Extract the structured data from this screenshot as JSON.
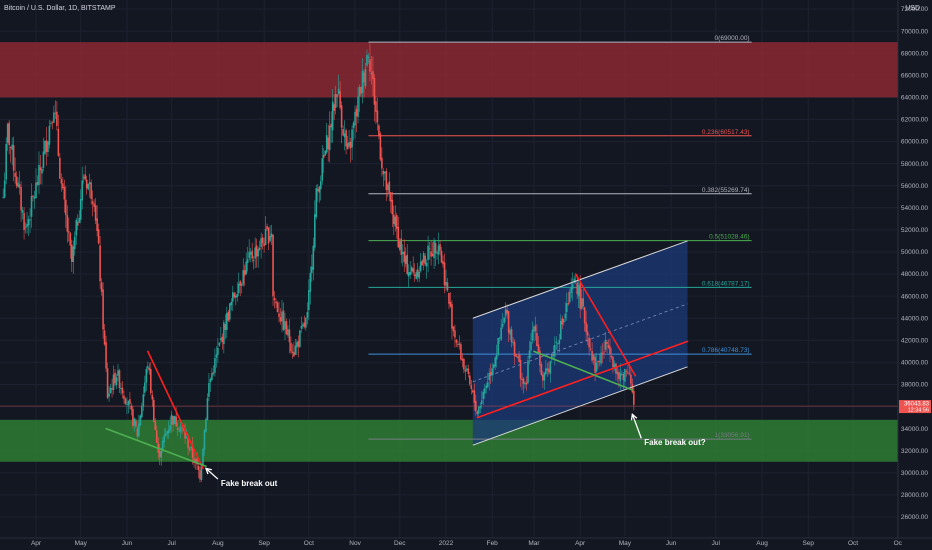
{
  "header": {
    "symbol_title": "Bitcoin / U.S. Dollar, 1D, BITSTAMP",
    "currency": "USD"
  },
  "colors": {
    "background": "#131722",
    "grid": "#1e2230",
    "candle_up": "#26a69a",
    "candle_down": "#ef5350",
    "resistance_zone": "#8c2833",
    "support_zone": "#2f7d32",
    "channel_fill": "#1c3a78",
    "channel_line": "#d9d9d9",
    "trend_red": "#ff1f1f",
    "trend_green": "#4caf50",
    "price_label": "#ef5350"
  },
  "chart_data": {
    "type": "candlestick",
    "title": "",
    "x_axis": {
      "ticks": [
        {
          "label": "Apr",
          "date": "2021-04-01"
        },
        {
          "label": "May",
          "date": "2021-05-01"
        },
        {
          "label": "Jun",
          "date": "2021-06-01"
        },
        {
          "label": "Jul",
          "date": "2021-07-01"
        },
        {
          "label": "Aug",
          "date": "2021-08-01"
        },
        {
          "label": "Sep",
          "date": "2021-09-01"
        },
        {
          "label": "Oct",
          "date": "2021-10-01"
        },
        {
          "label": "Nov",
          "date": "2021-11-01"
        },
        {
          "label": "Dec",
          "date": "2021-12-01"
        },
        {
          "label": "2022",
          "date": "2022-01-01"
        },
        {
          "label": "Feb",
          "date": "2022-02-01"
        },
        {
          "label": "Mar",
          "date": "2022-03-01"
        },
        {
          "label": "Apr",
          "date": "2022-04-01"
        },
        {
          "label": "May",
          "date": "2022-05-01"
        },
        {
          "label": "Jun",
          "date": "2022-06-01"
        },
        {
          "label": "Jul",
          "date": "2022-07-01"
        },
        {
          "label": "Aug",
          "date": "2022-08-01"
        },
        {
          "label": "Sep",
          "date": "2022-09-01"
        },
        {
          "label": "Oct",
          "date": "2022-10-01"
        },
        {
          "label": "Oc",
          "date": "2022-10-31"
        }
      ]
    },
    "y_axis": {
      "ylim": [
        24000,
        73000
      ],
      "ticks": [
        "72000.00",
        "70000.00",
        "68000.00",
        "66000.00",
        "64000.00",
        "62000.00",
        "60000.00",
        "58000.00",
        "56000.00",
        "54000.00",
        "52000.00",
        "50000.00",
        "48000.00",
        "46000.00",
        "44000.00",
        "42000.00",
        "40000.00",
        "38000.00",
        "36000.00",
        "34000.00",
        "32000.00",
        "30000.00",
        "28000.00",
        "26000.00"
      ]
    },
    "price_path": [
      [
        "2021-03-10",
        55000
      ],
      [
        "2021-03-13",
        61000
      ],
      [
        "2021-03-25",
        52000
      ],
      [
        "2021-04-05",
        58000
      ],
      [
        "2021-04-13",
        63500
      ],
      [
        "2021-04-18",
        56000
      ],
      [
        "2021-04-25",
        49000
      ],
      [
        "2021-05-03",
        57000
      ],
      [
        "2021-05-10",
        55000
      ],
      [
        "2021-05-13",
        50000
      ],
      [
        "2021-05-19",
        37000
      ],
      [
        "2021-05-25",
        39000
      ],
      [
        "2021-06-01",
        36500
      ],
      [
        "2021-06-08",
        33500
      ],
      [
        "2021-06-15",
        40000
      ],
      [
        "2021-06-22",
        31500
      ],
      [
        "2021-07-01",
        35000
      ],
      [
        "2021-07-08",
        34000
      ],
      [
        "2021-07-20",
        29800
      ],
      [
        "2021-07-26",
        38000
      ],
      [
        "2021-08-07",
        44000
      ],
      [
        "2021-08-14",
        47000
      ],
      [
        "2021-08-23",
        49500
      ],
      [
        "2021-09-06",
        52000
      ],
      [
        "2021-09-07",
        46000
      ],
      [
        "2021-09-21",
        41000
      ],
      [
        "2021-09-30",
        44000
      ],
      [
        "2021-10-06",
        55000
      ],
      [
        "2021-10-15",
        61000
      ],
      [
        "2021-10-20",
        65000
      ],
      [
        "2021-10-27",
        58500
      ],
      [
        "2021-11-10",
        68500
      ],
      [
        "2021-11-20",
        57000
      ],
      [
        "2021-12-04",
        49000
      ],
      [
        "2021-12-10",
        48000
      ],
      [
        "2021-12-27",
        51000
      ],
      [
        "2022-01-06",
        43000
      ],
      [
        "2022-01-22",
        35500
      ],
      [
        "2022-02-05",
        41500
      ],
      [
        "2022-02-10",
        44500
      ],
      [
        "2022-02-23",
        37500
      ],
      [
        "2022-03-01",
        44000
      ],
      [
        "2022-03-07",
        38000
      ],
      [
        "2022-03-29",
        47500
      ],
      [
        "2022-04-11",
        39500
      ],
      [
        "2022-04-20",
        42000
      ],
      [
        "2022-04-26",
        38500
      ],
      [
        "2022-05-04",
        39500
      ],
      [
        "2022-05-07",
        36043
      ]
    ],
    "price_ranges": [
      {
        "name": "resistance-zone",
        "from": 64000,
        "to": 69000
      },
      {
        "name": "support-zone",
        "from": 31000,
        "to": 34800
      }
    ],
    "fib_levels": [
      {
        "label": "0(69000.00)",
        "price": 69000,
        "color": "#b2b5be"
      },
      {
        "label": "0.236(60517.43)",
        "price": 60517.43,
        "color": "#ef5350"
      },
      {
        "label": "0.382(55269.74)",
        "price": 55269.74,
        "color": "#b2b5be"
      },
      {
        "label": "0.5(51028.46)",
        "price": 51028.46,
        "color": "#4caf50"
      },
      {
        "label": "0.618(46787.17)",
        "price": 46787.17,
        "color": "#26a69a"
      },
      {
        "label": "0.786(40748.73)",
        "price": 40748.73,
        "color": "#3f8fd8"
      },
      {
        "label": "1(33056.91)",
        "price": 33056.91,
        "color": "#787b86"
      }
    ],
    "fib_start_date": "2021-11-10",
    "fib_end_date": "2022-07-25",
    "channel": {
      "upper": [
        [
          "2022-01-19",
          44000
        ],
        [
          "2022-06-12",
          51000
        ]
      ],
      "lower": [
        [
          "2022-01-19",
          32500
        ],
        [
          "2022-06-12",
          39600
        ]
      ],
      "x_end": "2022-06-12"
    },
    "trend_lines": [
      {
        "name": "red-trend-2021",
        "color": "#ff1f1f",
        "points": [
          [
            "2021-06-15",
            41000
          ],
          [
            "2021-07-22",
            30400
          ]
        ]
      },
      {
        "name": "green-trend-2021",
        "color": "#4caf50",
        "points": [
          [
            "2021-05-18",
            34000
          ],
          [
            "2021-07-24",
            30600
          ]
        ]
      },
      {
        "name": "red-rising-support",
        "color": "#ff1f1f",
        "points": [
          [
            "2022-01-22",
            35000
          ],
          [
            "2022-06-12",
            41900
          ]
        ]
      },
      {
        "name": "red-downtrend-2022",
        "color": "#ff1f1f",
        "points": [
          [
            "2022-03-29",
            48000
          ],
          [
            "2022-05-08",
            38800
          ]
        ]
      },
      {
        "name": "green-downtrend-2022",
        "color": "#4caf50",
        "points": [
          [
            "2022-03-01",
            41000
          ],
          [
            "2022-05-06",
            37500
          ]
        ]
      }
    ],
    "annotations": [
      {
        "text": "Fake break out",
        "date": "2021-08-03",
        "price": 28800,
        "arrow_to": [
          "2021-07-24",
          30400
        ]
      },
      {
        "text": "Fake break out?",
        "date": "2022-05-14",
        "price": 32500,
        "arrow_to": [
          "2022-05-06",
          35300
        ]
      }
    ],
    "last_price": {
      "value": "36043.83",
      "countdown": "12:34:56",
      "price": 36043.83
    },
    "extra_levels": [
      {
        "price": 36043.83,
        "color": "#ef5350"
      }
    ]
  }
}
